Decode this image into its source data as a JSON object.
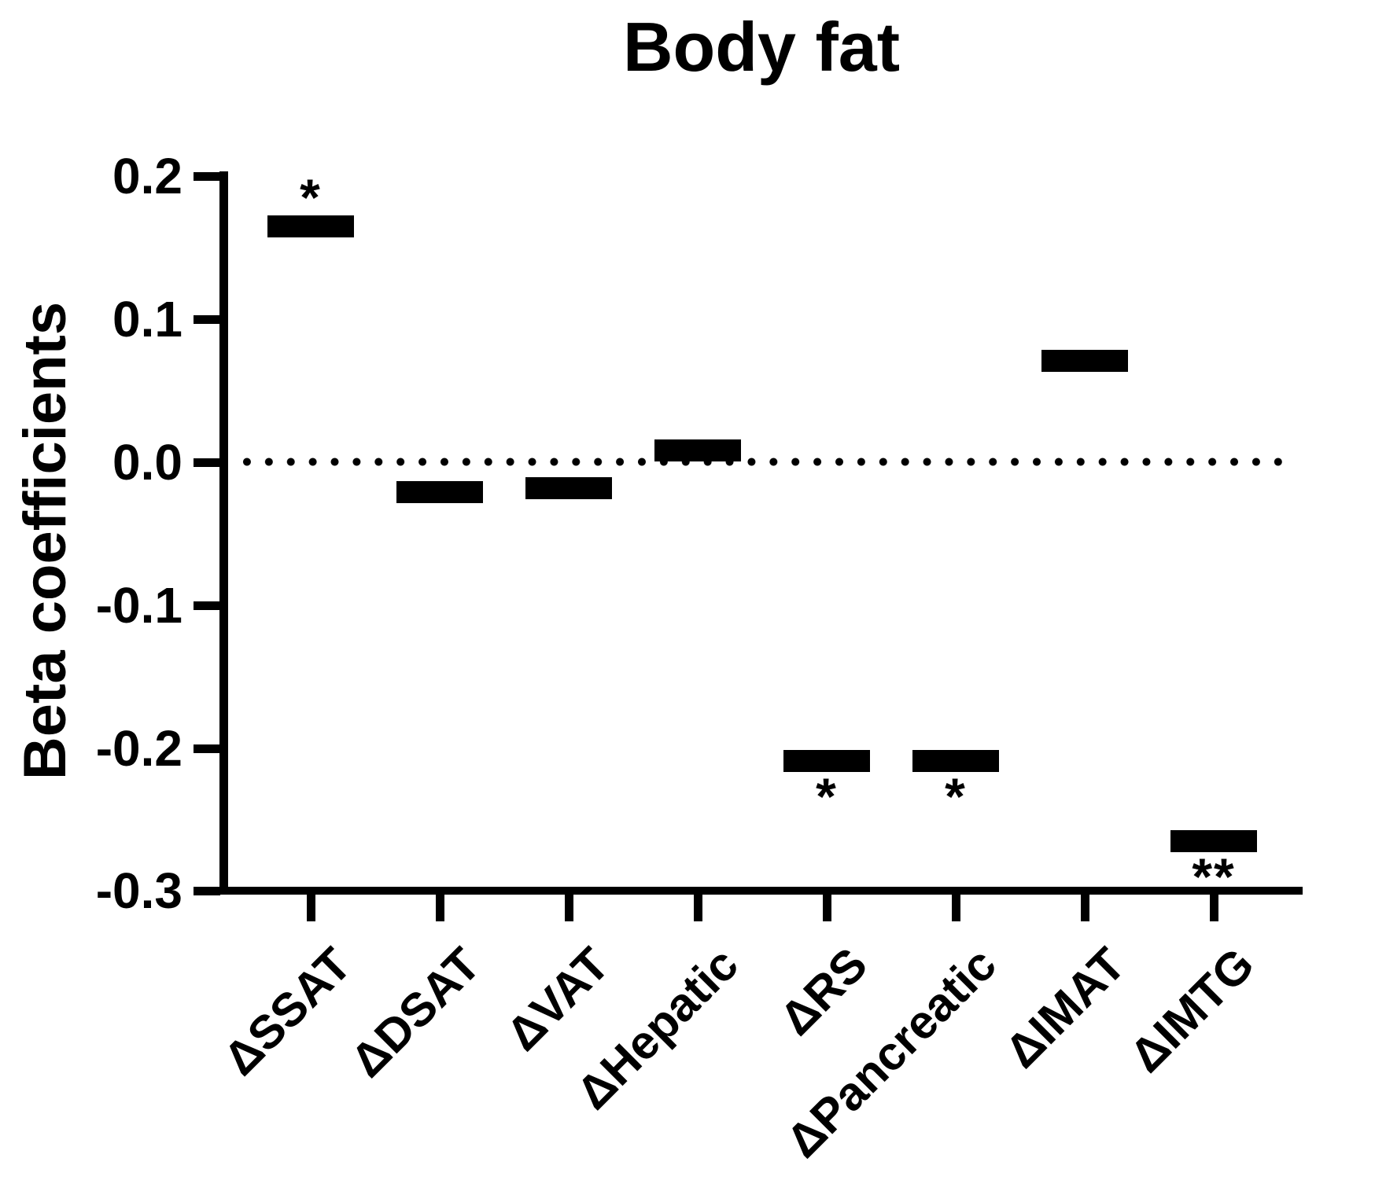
{
  "title": "Body fat",
  "y_axis": {
    "label": "Beta coefficients",
    "tick_labels": [
      "0.2",
      "0.1",
      "0.0",
      "-0.1",
      "-0.2",
      "-0.3"
    ]
  },
  "x_axis": {
    "categories": [
      "ΔSSAT",
      "ΔDSAT",
      "ΔVAT",
      "ΔHepatic",
      "ΔRS",
      "ΔPancreatic",
      "ΔIMAT",
      "ΔIMTG"
    ]
  },
  "chart_data": {
    "type": "bar",
    "title": "Body fat",
    "xlabel": "",
    "ylabel": "Beta coefficients",
    "categories": [
      "ΔSSAT",
      "ΔDSAT",
      "ΔVAT",
      "ΔHepatic",
      "ΔRS",
      "ΔPancreatic",
      "ΔIMAT",
      "ΔIMTG"
    ],
    "values": [
      0.165,
      -0.021,
      -0.018,
      0.008,
      -0.209,
      -0.209,
      0.071,
      -0.265
    ],
    "significance": [
      {
        "marker": "*",
        "position": "above"
      },
      null,
      null,
      null,
      {
        "marker": "*",
        "position": "below"
      },
      {
        "marker": "*",
        "position": "below"
      },
      null,
      {
        "marker": "**",
        "position": "below"
      }
    ],
    "ylim": [
      -0.3,
      0.2
    ],
    "yticks": [
      0.2,
      0.1,
      0.0,
      -0.1,
      -0.2,
      -0.3
    ],
    "ytick_labels": [
      "0.2",
      "0.1",
      "0.0",
      "-0.1",
      "-0.2",
      "-0.3"
    ],
    "zero_line_style": "dotted",
    "bar_color": "#000000",
    "background_color": "#ffffff",
    "grid": false,
    "legend": false,
    "bar_style": "floating-dash"
  }
}
